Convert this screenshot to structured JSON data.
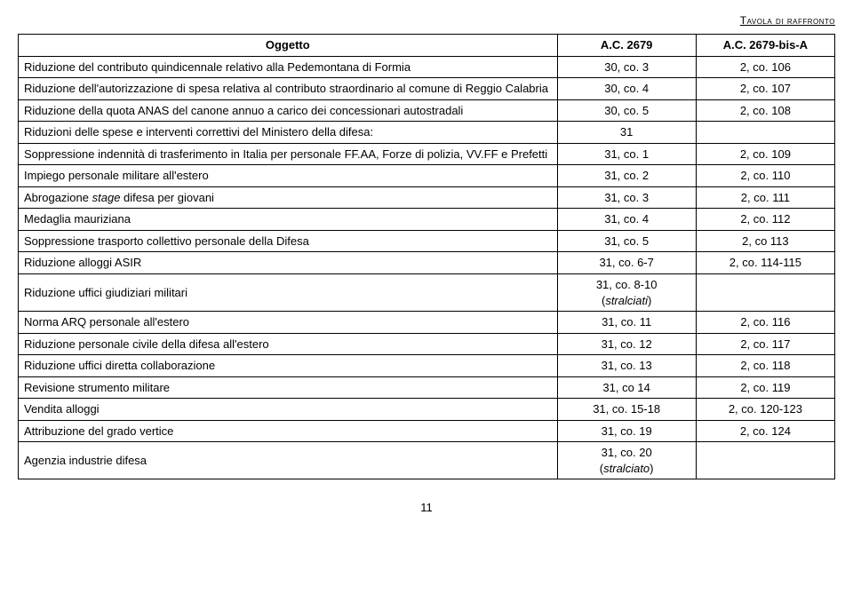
{
  "header": {
    "running_title": "Tavola di raffronto"
  },
  "table": {
    "columns": {
      "oggetto": "Oggetto",
      "ref1": "A.C. 2679",
      "ref2": "A.C. 2679-bis-A"
    },
    "rows": [
      {
        "oggetto": "Riduzione del contributo quindicennale relativo alla Pedemontana di Formia",
        "ref1": "30, co. 3",
        "ref2": "2, co. 106"
      },
      {
        "oggetto": "Riduzione dell'autorizzazione di spesa relativa al contributo straordinario al comune di Reggio Calabria",
        "ref1": "30, co. 4",
        "ref2": "2, co. 107"
      },
      {
        "oggetto": "Riduzione della quota ANAS del canone annuo a carico dei concessionari autostradali",
        "ref1": "30, co. 5",
        "ref2": "2, co. 108"
      },
      {
        "oggetto": "Riduzioni delle spese e interventi correttivi del Ministero della difesa:",
        "ref1": "31",
        "ref2": ""
      },
      {
        "oggetto": "Soppressione indennità di trasferimento in Italia per personale FF.AA, Forze di polizia, VV.FF e Prefetti",
        "ref1": "31, co. 1",
        "ref2": "2, co. 109"
      },
      {
        "oggetto": "Impiego personale militare all'estero",
        "ref1": "31, co. 2",
        "ref2": "2, co. 110"
      },
      {
        "oggetto_html": "Abrogazione <span class=\"italic\">stage</span> difesa per giovani",
        "ref1": "31, co. 3",
        "ref2": "2, co. 111"
      },
      {
        "oggetto": "Medaglia mauriziana",
        "ref1": "31, co. 4",
        "ref2": "2, co. 112"
      },
      {
        "oggetto": "Soppressione trasporto collettivo personale della Difesa",
        "ref1": "31, co. 5",
        "ref2": "2, co 113"
      },
      {
        "oggetto": "Riduzione alloggi ASIR",
        "ref1": "31, co. 6-7",
        "ref2": "2, co. 114-115"
      },
      {
        "oggetto": "Riduzione uffici giudiziari militari",
        "ref1_html": "31, co. 8-10<br>(<span class=\"italic\">stralciati</span>)",
        "ref2": ""
      },
      {
        "oggetto": "Norma ARQ personale all'estero",
        "ref1": "31, co. 11",
        "ref2": "2, co. 116"
      },
      {
        "oggetto": "Riduzione personale civile della difesa all'estero",
        "ref1": "31, co. 12",
        "ref2": "2, co. 117"
      },
      {
        "oggetto": "Riduzione uffici diretta collaborazione",
        "ref1": "31, co. 13",
        "ref2": "2, co. 118"
      },
      {
        "oggetto": "Revisione strumento militare",
        "ref1": "31, co 14",
        "ref2": "2, co. 119"
      },
      {
        "oggetto": "Vendita alloggi",
        "ref1": "31, co. 15-18",
        "ref2": "2, co. 120-123"
      },
      {
        "oggetto": "Attribuzione del grado vertice",
        "ref1": "31, co. 19",
        "ref2": "2, co. 124"
      },
      {
        "oggetto": "Agenzia industrie difesa",
        "ref1_html": "31, co. 20<br>(<span class=\"italic\">stralciato</span>)",
        "ref2": ""
      }
    ]
  },
  "page_number": "11"
}
